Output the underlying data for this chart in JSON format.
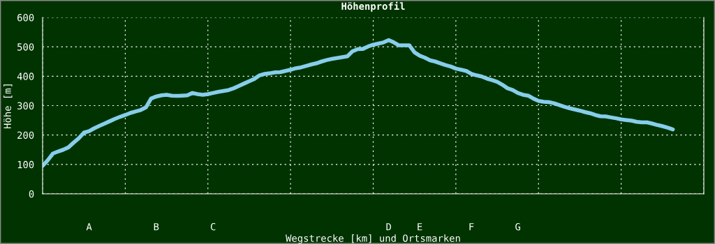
{
  "chart_data": {
    "type": "line",
    "title": "Höhenprofil",
    "xlabel": "Wegstrecke [km] und Ortsmarken",
    "ylabel": "Höhe [m]",
    "categories": [
      null,
      null,
      null,
      null,
      null,
      null,
      null,
      null,
      null,
      "A",
      null,
      null,
      null,
      null,
      null,
      null,
      null,
      null,
      null,
      null,
      null,
      null,
      "B",
      null,
      null,
      null,
      null,
      null,
      null,
      null,
      null,
      null,
      null,
      "C",
      null,
      null,
      null,
      null,
      null,
      null,
      null,
      null,
      null,
      null,
      null,
      null,
      null,
      null,
      null,
      null,
      null,
      null,
      null,
      null,
      null,
      null,
      null,
      null,
      null,
      null,
      null,
      null,
      null,
      null,
      null,
      null,
      null,
      "D",
      null,
      null,
      null,
      null,
      null,
      "E",
      null,
      null,
      null,
      null,
      null,
      null,
      null,
      null,
      null,
      "F",
      null,
      null,
      null,
      null,
      null,
      null,
      null,
      null,
      "G",
      null,
      null,
      null,
      null,
      null,
      null,
      null,
      null,
      null,
      null,
      null,
      null,
      null,
      null,
      null,
      null,
      null,
      null,
      null,
      null,
      null,
      null,
      null,
      null,
      null,
      null,
      null,
      null,
      null,
      null,
      null,
      null,
      null,
      null,
      null,
      null
    ],
    "series": [
      {
        "color": "#87ceeb",
        "values": [
          95,
          114,
          137,
          144,
          150,
          158,
          174,
          189,
          208,
          213,
          223,
          231,
          239,
          247,
          255,
          262,
          268,
          275,
          280,
          285,
          294,
          324,
          331,
          335,
          337,
          334,
          333,
          334,
          335,
          343,
          339,
          337,
          339,
          343,
          347,
          350,
          353,
          359,
          367,
          375,
          383,
          391,
          403,
          408,
          410,
          413,
          414,
          418,
          422,
          427,
          430,
          435,
          440,
          444,
          450,
          455,
          459,
          462,
          465,
          468,
          485,
          492,
          493,
          501,
          507,
          511,
          515,
          523,
          515,
          505,
          505,
          505,
          481,
          470,
          463,
          454,
          450,
          444,
          438,
          433,
          426,
          422,
          418,
          408,
          403,
          399,
          392,
          387,
          381,
          371,
          359,
          353,
          343,
          337,
          334,
          324,
          316,
          313,
          312,
          308,
          302,
          296,
          291,
          287,
          283,
          278,
          274,
          268,
          264,
          263,
          260,
          257,
          253,
          251,
          249,
          245,
          243,
          243,
          239,
          234,
          230,
          225,
          219,
          null,
          null,
          null,
          null,
          null,
          null
        ]
      }
    ],
    "ylim": [
      0,
      600
    ],
    "yticks": [
      0,
      100,
      200,
      300,
      400,
      500,
      600
    ],
    "grid": true,
    "marker": "none",
    "line_style": "solid"
  }
}
